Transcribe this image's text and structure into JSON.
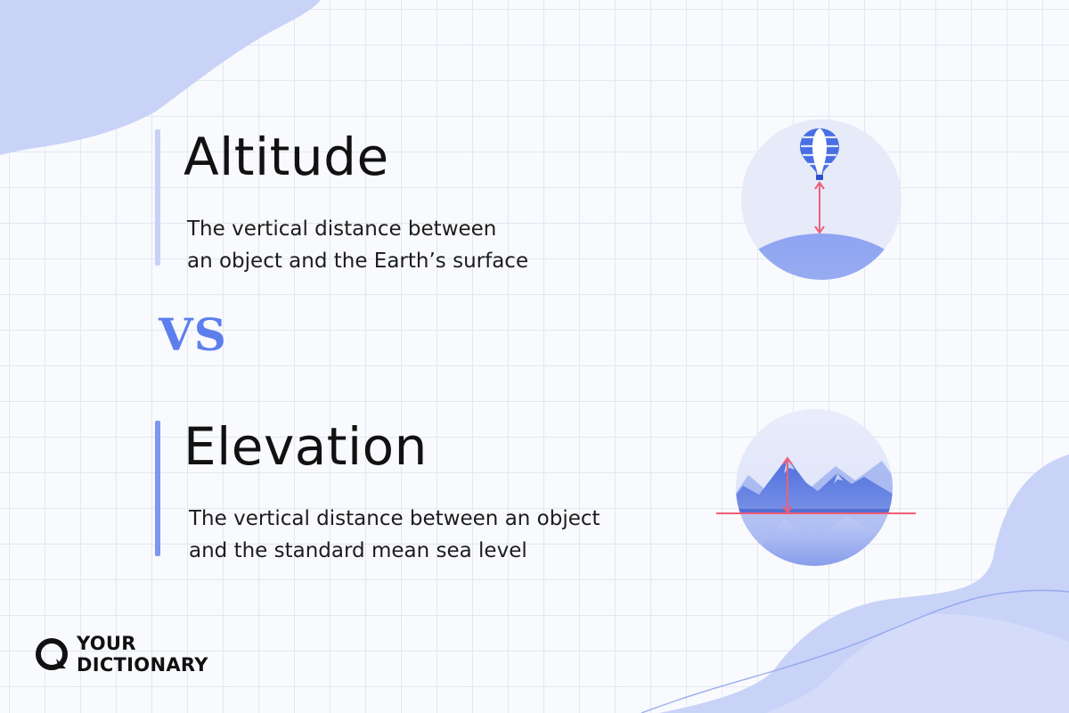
{
  "colors": {
    "accent": "#5d7fee",
    "bar_light": "#c8d2f5",
    "bar_dark": "#7d96ee",
    "measure_line": "#ee5e78",
    "text": "#111111",
    "blob": "#c9d3f8"
  },
  "altitude": {
    "title": "Altitude",
    "definition_line1": "The vertical distance between",
    "definition_line2": "an object and the Earth’s surface",
    "illustration_icon": "hot-air-balloon-icon"
  },
  "separator": {
    "text": "VS"
  },
  "elevation": {
    "title": "Elevation",
    "definition_line1": "The vertical distance between an object",
    "definition_line2": "and the standard mean sea level",
    "illustration_icon": "mountain-sea-level-icon"
  },
  "logo": {
    "line1": "YOUR",
    "line2": "DICTIONARY",
    "icon": "yourdictionary-logo-icon"
  }
}
